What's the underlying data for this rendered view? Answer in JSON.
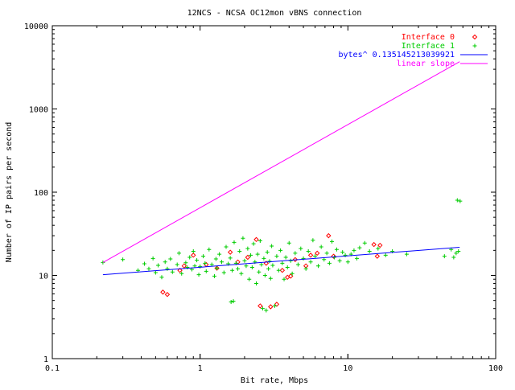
{
  "chart_data": {
    "type": "scatter",
    "title": "12NCS - NCSA OC12mon vBNS connection",
    "xlabel": "Bit rate, Mbps",
    "ylabel": "Number of IP pairs per second",
    "x_scale": "log",
    "y_scale": "log",
    "xlim": [
      0.1,
      100
    ],
    "ylim": [
      1,
      10000
    ],
    "x_ticks": [
      0.1,
      1,
      10,
      100
    ],
    "x_tick_labels": [
      "0.1",
      "1",
      "10",
      "100"
    ],
    "y_ticks": [
      1,
      10,
      100,
      1000,
      10000
    ],
    "y_tick_labels": [
      "1",
      "10",
      "100",
      "1000",
      "10000"
    ],
    "grid": false,
    "legend_position": "top-right",
    "series": [
      {
        "name": "Interface 0",
        "kind": "points",
        "marker": "diamond",
        "color": "#ff0000",
        "points": [
          [
            0.56,
            6.3
          ],
          [
            0.6,
            5.9
          ],
          [
            0.73,
            11.5
          ],
          [
            0.78,
            13.0
          ],
          [
            0.9,
            17.5
          ],
          [
            1.1,
            13.5
          ],
          [
            1.3,
            12.2
          ],
          [
            1.6,
            19.0
          ],
          [
            1.8,
            14.5
          ],
          [
            2.1,
            16.5
          ],
          [
            2.4,
            27.0
          ],
          [
            2.55,
            4.3
          ],
          [
            2.8,
            14.0
          ],
          [
            3.0,
            4.2
          ],
          [
            3.3,
            4.5
          ],
          [
            3.6,
            11.5
          ],
          [
            3.9,
            9.5
          ],
          [
            4.1,
            9.8
          ],
          [
            4.4,
            15.5
          ],
          [
            5.2,
            13.0
          ],
          [
            5.6,
            17.5
          ],
          [
            6.2,
            18.5
          ],
          [
            7.4,
            30.0
          ],
          [
            8.0,
            17.0
          ],
          [
            15.0,
            23.5
          ],
          [
            15.8,
            17.0
          ],
          [
            16.5,
            23.0
          ]
        ]
      },
      {
        "name": "Interface 1",
        "kind": "points",
        "marker": "plus",
        "color": "#00cc00",
        "points": [
          [
            0.22,
            14.3
          ],
          [
            0.3,
            15.5
          ],
          [
            0.38,
            11.5
          ],
          [
            0.42,
            13.8
          ],
          [
            0.45,
            12.0
          ],
          [
            0.48,
            16.0
          ],
          [
            0.5,
            10.8
          ],
          [
            0.52,
            13.2
          ],
          [
            0.55,
            9.5
          ],
          [
            0.58,
            14.5
          ],
          [
            0.6,
            12.0
          ],
          [
            0.63,
            15.8
          ],
          [
            0.65,
            11.0
          ],
          [
            0.7,
            13.5
          ],
          [
            0.72,
            18.5
          ],
          [
            0.75,
            10.5
          ],
          [
            0.8,
            14.2
          ],
          [
            0.82,
            12.5
          ],
          [
            0.85,
            16.5
          ],
          [
            0.88,
            11.8
          ],
          [
            0.9,
            19.5
          ],
          [
            0.92,
            13.0
          ],
          [
            0.95,
            15.2
          ],
          [
            0.98,
            10.2
          ],
          [
            1.0,
            12.8
          ],
          [
            1.05,
            17.0
          ],
          [
            1.08,
            14.0
          ],
          [
            1.1,
            11.2
          ],
          [
            1.15,
            20.5
          ],
          [
            1.2,
            13.5
          ],
          [
            1.25,
            9.8
          ],
          [
            1.28,
            15.8
          ],
          [
            1.3,
            12.2
          ],
          [
            1.35,
            18.0
          ],
          [
            1.4,
            14.5
          ],
          [
            1.45,
            10.8
          ],
          [
            1.5,
            22.0
          ],
          [
            1.55,
            13.8
          ],
          [
            1.6,
            16.2
          ],
          [
            1.62,
            4.8
          ],
          [
            1.65,
            11.5
          ],
          [
            1.68,
            4.9
          ],
          [
            1.7,
            25.0
          ],
          [
            1.75,
            14.0
          ],
          [
            1.8,
            12.0
          ],
          [
            1.85,
            19.5
          ],
          [
            1.9,
            10.5
          ],
          [
            1.95,
            28.0
          ],
          [
            2.0,
            15.0
          ],
          [
            2.05,
            13.0
          ],
          [
            2.1,
            21.0
          ],
          [
            2.15,
            9.0
          ],
          [
            2.2,
            17.5
          ],
          [
            2.25,
            12.5
          ],
          [
            2.3,
            24.0
          ],
          [
            2.35,
            14.5
          ],
          [
            2.4,
            8.0
          ],
          [
            2.45,
            18.0
          ],
          [
            2.5,
            11.0
          ],
          [
            2.55,
            26.0
          ],
          [
            2.6,
            13.5
          ],
          [
            2.65,
            4.0
          ],
          [
            2.7,
            16.0
          ],
          [
            2.75,
            10.0
          ],
          [
            2.8,
            3.8
          ],
          [
            2.85,
            19.0
          ],
          [
            2.9,
            12.0
          ],
          [
            2.95,
            14.8
          ],
          [
            3.0,
            9.2
          ],
          [
            3.05,
            22.5
          ],
          [
            3.1,
            13.2
          ],
          [
            3.2,
            4.3
          ],
          [
            3.3,
            17.0
          ],
          [
            3.4,
            11.5
          ],
          [
            3.5,
            20.0
          ],
          [
            3.6,
            14.0
          ],
          [
            3.7,
            9.0
          ],
          [
            3.8,
            16.5
          ],
          [
            3.9,
            12.5
          ],
          [
            4.0,
            24.5
          ],
          [
            4.1,
            15.0
          ],
          [
            4.2,
            10.5
          ],
          [
            4.4,
            18.5
          ],
          [
            4.6,
            13.5
          ],
          [
            4.8,
            21.0
          ],
          [
            5.0,
            16.0
          ],
          [
            5.2,
            12.0
          ],
          [
            5.4,
            19.5
          ],
          [
            5.6,
            14.5
          ],
          [
            5.8,
            26.5
          ],
          [
            6.0,
            17.0
          ],
          [
            6.3,
            13.0
          ],
          [
            6.6,
            22.0
          ],
          [
            6.9,
            15.5
          ],
          [
            7.2,
            18.5
          ],
          [
            7.5,
            14.0
          ],
          [
            7.8,
            25.5
          ],
          [
            8.1,
            16.5
          ],
          [
            8.4,
            20.5
          ],
          [
            8.8,
            15.0
          ],
          [
            9.2,
            19.0
          ],
          [
            9.6,
            17.5
          ],
          [
            10.0,
            14.5
          ],
          [
            10.5,
            18.0
          ],
          [
            11.0,
            20.0
          ],
          [
            11.5,
            16.0
          ],
          [
            12.0,
            21.5
          ],
          [
            13.0,
            24.5
          ],
          [
            14.0,
            19.5
          ],
          [
            16.0,
            21.0
          ],
          [
            18.0,
            17.5
          ],
          [
            20.0,
            19.5
          ],
          [
            25.0,
            18.0
          ],
          [
            45.0,
            17.0
          ],
          [
            50.0,
            20.5
          ],
          [
            52.0,
            16.5
          ],
          [
            54.0,
            18.5
          ],
          [
            55.0,
            80.0
          ],
          [
            56.0,
            19.5
          ],
          [
            57.5,
            78.0
          ]
        ]
      },
      {
        "name": "bytes^ 0.135145213039921",
        "kind": "line",
        "color": "#0000ff",
        "points": [
          [
            0.22,
            10.2
          ],
          [
            57.0,
            21.8
          ]
        ]
      },
      {
        "name": "linear slope",
        "kind": "line",
        "color": "#ff00ff",
        "points": [
          [
            0.22,
            14.3
          ],
          [
            57.0,
            3700.0
          ]
        ]
      }
    ]
  }
}
